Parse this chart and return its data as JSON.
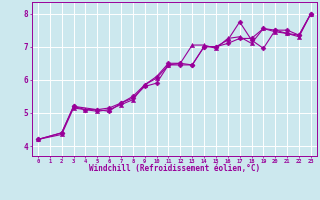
{
  "xlabel": "Windchill (Refroidissement éolien,°C)",
  "bg_color": "#cce8ee",
  "line_color": "#990099",
  "grid_color": "#ffffff",
  "xlim": [
    -0.5,
    23.5
  ],
  "ylim": [
    3.7,
    8.35
  ],
  "xticks": [
    0,
    1,
    2,
    3,
    4,
    5,
    6,
    7,
    8,
    9,
    10,
    11,
    12,
    13,
    14,
    15,
    16,
    17,
    18,
    19,
    20,
    21,
    22,
    23
  ],
  "yticks": [
    4,
    5,
    6,
    7,
    8
  ],
  "series": [
    {
      "x": [
        0,
        2,
        3,
        4,
        5,
        6,
        7,
        8,
        9,
        10,
        11,
        12,
        13,
        14,
        15,
        16,
        17,
        18,
        19,
        20,
        21,
        22,
        23
      ],
      "y": [
        4.2,
        4.4,
        5.2,
        5.1,
        5.1,
        5.05,
        5.3,
        5.45,
        5.8,
        5.9,
        6.45,
        6.45,
        6.45,
        7.0,
        7.0,
        7.1,
        7.25,
        7.25,
        7.55,
        7.5,
        7.4,
        7.35,
        8.0
      ],
      "marker": "D",
      "markersize": 2.5
    },
    {
      "x": [
        0,
        2,
        3,
        4,
        5,
        6,
        7,
        8,
        9,
        10,
        11,
        12,
        13,
        14,
        15,
        16,
        17,
        18,
        19,
        20,
        21,
        22,
        23
      ],
      "y": [
        4.2,
        4.35,
        5.15,
        5.1,
        5.05,
        5.1,
        5.25,
        5.4,
        5.85,
        6.05,
        6.45,
        6.5,
        7.05,
        7.05,
        6.95,
        7.25,
        7.3,
        7.1,
        7.55,
        7.45,
        7.4,
        7.3,
        8.0
      ],
      "marker": "^",
      "markersize": 3
    },
    {
      "x": [
        0,
        2,
        3,
        5,
        6,
        7,
        8,
        9,
        10,
        11,
        12,
        13,
        14,
        15,
        16,
        17,
        18,
        19,
        20,
        21,
        22,
        23
      ],
      "y": [
        4.2,
        4.4,
        5.2,
        5.1,
        5.15,
        5.3,
        5.5,
        5.85,
        6.1,
        6.5,
        6.5,
        6.45,
        7.0,
        7.0,
        7.2,
        7.75,
        7.2,
        6.95,
        7.5,
        7.5,
        7.35,
        8.0
      ],
      "marker": "D",
      "markersize": 2.5
    }
  ]
}
